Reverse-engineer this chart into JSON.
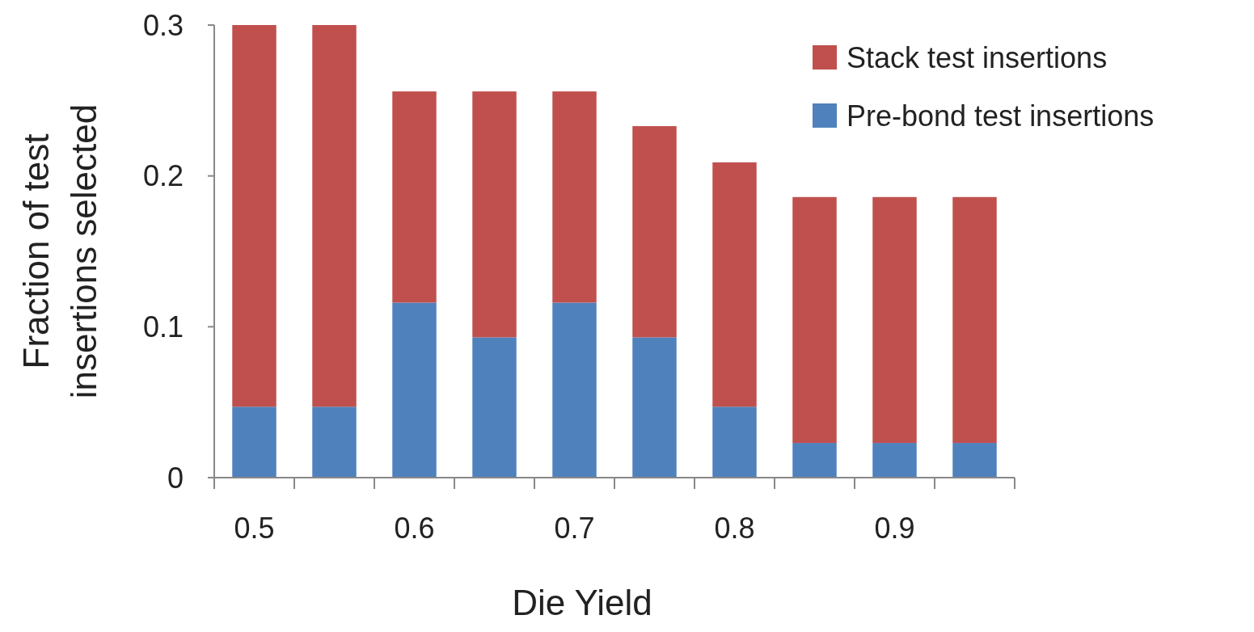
{
  "chart_data": {
    "type": "bar",
    "stacked": true,
    "xlabel": "Die Yield",
    "ylabel": "Fraction of test insertions selected",
    "categories": [
      "0.5",
      null,
      "0.6",
      null,
      "0.7",
      null,
      "0.8",
      null,
      "0.9",
      null
    ],
    "series": [
      {
        "name": "Pre-bond test insertions",
        "color": "#4f81bd",
        "values": [
          0.047,
          0.047,
          0.116,
          0.093,
          0.116,
          0.093,
          0.047,
          0.023,
          0.023,
          0.023
        ]
      },
      {
        "name": "Stack test insertions",
        "color": "#c0504d",
        "values": [
          0.253,
          0.253,
          0.14,
          0.163,
          0.14,
          0.14,
          0.162,
          0.163,
          0.163,
          0.163
        ]
      }
    ],
    "ylim": [
      0,
      0.3
    ],
    "yticks": [
      {
        "value": 0,
        "label": "0"
      },
      0.1,
      0.2,
      0.3
    ],
    "grid": false,
    "legend": "top right"
  }
}
